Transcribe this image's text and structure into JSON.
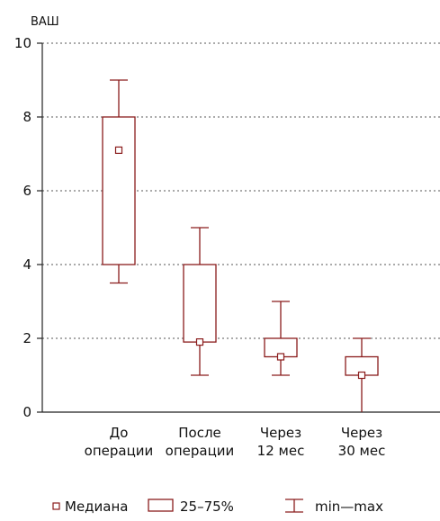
{
  "chart_data": {
    "type": "boxplot",
    "ylabel": "ВАШ",
    "ylim": [
      0,
      10
    ],
    "yticks": [
      0,
      2,
      4,
      6,
      8,
      10
    ],
    "grid": "horizontal-dotted",
    "legend_position": "bottom",
    "colors": {
      "box": "#8a1c1c",
      "axis": "#222222",
      "grid": "#555555"
    },
    "categories": [
      {
        "lines": [
          "До",
          "операции"
        ],
        "min": 3.5,
        "q1": 4.0,
        "median": 7.1,
        "q3": 8.0,
        "max": 9.0
      },
      {
        "lines": [
          "После",
          "операции"
        ],
        "min": 1.0,
        "q1": 1.9,
        "median": 1.9,
        "q3": 4.0,
        "max": 5.0
      },
      {
        "lines": [
          "Через",
          "12 мес"
        ],
        "min": 1.0,
        "q1": 1.5,
        "median": 1.5,
        "q3": 2.0,
        "max": 3.0
      },
      {
        "lines": [
          "Через",
          "30 мес"
        ],
        "min": 0.0,
        "q1": 1.0,
        "median": 1.0,
        "q3": 1.5,
        "max": 2.0
      }
    ],
    "legend": {
      "median": "Медиана",
      "box": "25–75%",
      "whisker": "min—max"
    }
  }
}
